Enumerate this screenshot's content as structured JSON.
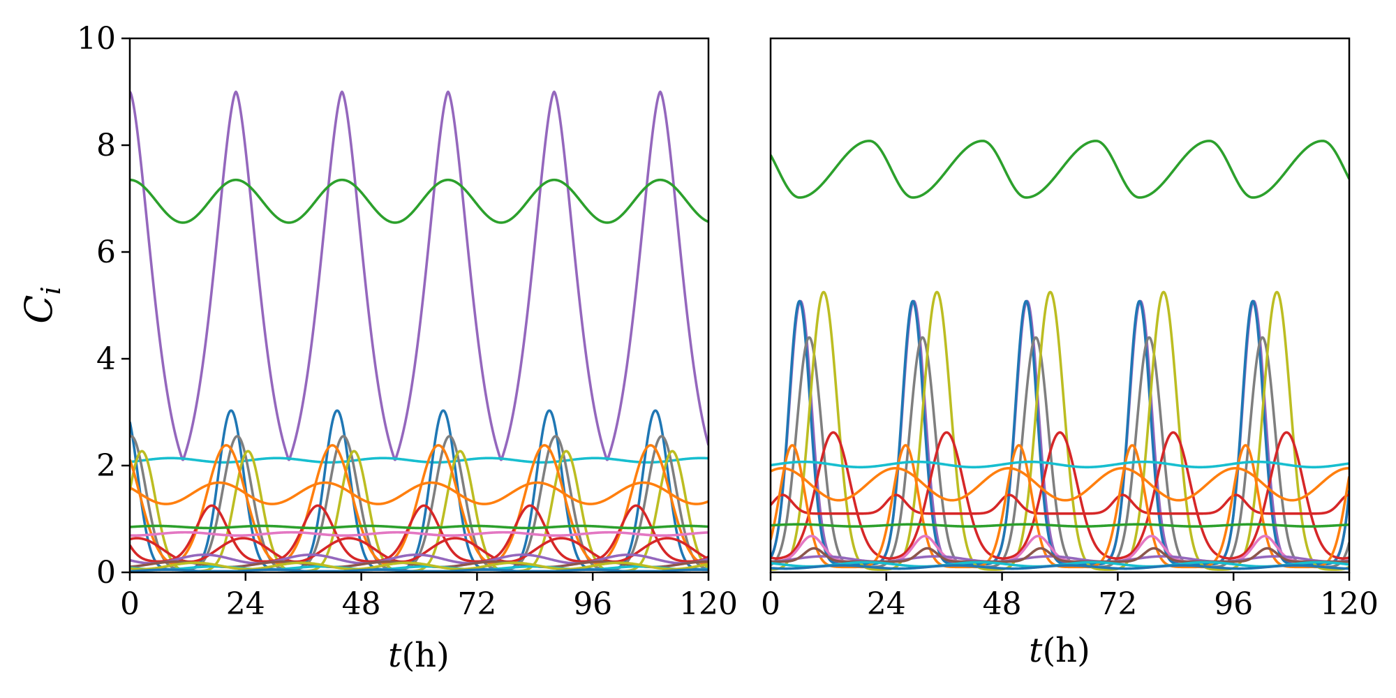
{
  "chart_data": [
    {
      "type": "line",
      "panel": "left",
      "title": "",
      "xlabel_var": "t",
      "xlabel_unit": "(h)",
      "ylabel": "C",
      "ylabel_sub": "i",
      "xlim": [
        0,
        120
      ],
      "ylim": [
        0,
        10
      ],
      "xticks": [
        0,
        24,
        48,
        72,
        96,
        120
      ],
      "xtick_labels": [
        "0",
        "24",
        "48",
        "72",
        "96",
        "120"
      ],
      "yticks": [
        0,
        2,
        4,
        6,
        8,
        10
      ],
      "ytick_labels": [
        "0",
        "2",
        "4",
        "6",
        "8",
        "10"
      ],
      "period_h": 22.0,
      "series": [
        {
          "name": "purple",
          "color": "#9467bd",
          "shape": "peak",
          "base": 1.35,
          "amp": 7.65,
          "center": 0.0,
          "width": 4.2,
          "power": 1.6
        },
        {
          "name": "green",
          "color": "#2ca02c",
          "shape": "sin",
          "base": 6.95,
          "amp": 0.4,
          "phase": 16.5
        },
        {
          "name": "teal",
          "color": "#17becf",
          "shape": "sin",
          "base": 2.1,
          "amp": 0.04,
          "phase": 3.0
        },
        {
          "name": "blue",
          "color": "#1f77b4",
          "shape": "peak",
          "base": 0.05,
          "amp": 2.98,
          "center": 21.0,
          "width": 2.6,
          "power": 2
        },
        {
          "name": "gray",
          "color": "#7f7f7f",
          "shape": "peak",
          "base": 0.05,
          "amp": 2.5,
          "center": 22.3,
          "width": 3.0,
          "power": 2
        },
        {
          "name": "olive",
          "color": "#bcbd22",
          "shape": "peak",
          "base": 0.02,
          "amp": 2.25,
          "center": 2.5,
          "width": 2.8,
          "power": 2
        },
        {
          "name": "orange",
          "color": "#ff7f0e",
          "shape": "peak",
          "base": 0.1,
          "amp": 2.28,
          "center": 20.0,
          "width": 4.0,
          "power": 2
        },
        {
          "name": "orange-2",
          "color": "#ff7f0e",
          "shape": "sin",
          "base": 1.48,
          "amp": 0.2,
          "phase": 13.0
        },
        {
          "name": "red",
          "color": "#d62728",
          "shape": "peak",
          "base": 0.2,
          "amp": 1.05,
          "center": 17.0,
          "width": 3.2,
          "power": 2
        },
        {
          "name": "red-2",
          "color": "#d62728",
          "shape": "sin",
          "base": 0.42,
          "amp": 0.22,
          "phase": 18.0
        },
        {
          "name": "green-2",
          "color": "#2ca02c",
          "shape": "sin",
          "base": 0.85,
          "amp": 0.02,
          "phase": 0.0
        },
        {
          "name": "pink",
          "color": "#e377c2",
          "shape": "sin",
          "base": 0.72,
          "amp": 0.03,
          "phase": 6.0
        },
        {
          "name": "purple-2",
          "color": "#9467bd",
          "shape": "sin",
          "base": 0.25,
          "amp": 0.08,
          "phase": 10.0
        },
        {
          "name": "brown",
          "color": "#8c564b",
          "shape": "sin",
          "base": 0.15,
          "amp": 0.05,
          "phase": 4.0
        },
        {
          "name": "cyan-2",
          "color": "#17becf",
          "shape": "sin",
          "base": 0.08,
          "amp": 0.03,
          "phase": 12.0
        },
        {
          "name": "olive-2",
          "color": "#bcbd22",
          "shape": "sin",
          "base": 0.12,
          "amp": 0.06,
          "phase": 8.0
        },
        {
          "name": "blue-2",
          "color": "#1f77b4",
          "shape": "sin",
          "base": 0.03,
          "amp": 0.02,
          "phase": 2.0
        }
      ]
    },
    {
      "type": "line",
      "panel": "right",
      "title": "",
      "xlabel_var": "t",
      "xlabel_unit": "(h)",
      "xlim": [
        0,
        120
      ],
      "ylim": [
        0,
        10
      ],
      "xticks": [
        0,
        24,
        48,
        72,
        96,
        120
      ],
      "xtick_labels": [
        "0",
        "24",
        "48",
        "72",
        "96",
        "120"
      ],
      "period_h": 23.5,
      "series": [
        {
          "name": "green",
          "color": "#2ca02c",
          "shape": "saw",
          "base": 7.02,
          "amp": 1.06,
          "rise": 14.5,
          "start": 6.0
        },
        {
          "name": "purple",
          "color": "#9467bd",
          "shape": "peak",
          "base": 0.15,
          "amp": 4.93,
          "center": 6.2,
          "width": 2.3,
          "power": 2
        },
        {
          "name": "blue",
          "color": "#1f77b4",
          "shape": "peak",
          "base": 0.15,
          "amp": 4.93,
          "center": 6.0,
          "width": 2.2,
          "power": 2
        },
        {
          "name": "gray",
          "color": "#7f7f7f",
          "shape": "peak",
          "base": 0.1,
          "amp": 4.3,
          "center": 8.0,
          "width": 2.6,
          "power": 2
        },
        {
          "name": "olive",
          "color": "#bcbd22",
          "shape": "peak",
          "base": 0.05,
          "amp": 5.2,
          "center": 11.0,
          "width": 2.8,
          "power": 2
        },
        {
          "name": "red",
          "color": "#d62728",
          "shape": "peak",
          "base": 0.25,
          "amp": 2.37,
          "center": 13.0,
          "width": 3.5,
          "power": 2
        },
        {
          "name": "red-2",
          "color": "#d62728",
          "shape": "peak",
          "base": 1.1,
          "amp": 0.35,
          "center": 2.5,
          "width": 2.0,
          "power": 2
        },
        {
          "name": "orange",
          "color": "#ff7f0e",
          "shape": "peak",
          "base": 0.1,
          "amp": 2.28,
          "center": 4.5,
          "width": 2.6,
          "power": 2
        },
        {
          "name": "orange-2",
          "color": "#ff7f0e",
          "shape": "sin",
          "base": 1.65,
          "amp": 0.3,
          "phase": 20.0
        },
        {
          "name": "teal",
          "color": "#17becf",
          "shape": "sin",
          "base": 2.02,
          "amp": 0.05,
          "phase": 1.0
        },
        {
          "name": "green-2",
          "color": "#2ca02c",
          "shape": "sin",
          "base": 0.88,
          "amp": 0.02,
          "phase": 0.0
        },
        {
          "name": "pink",
          "color": "#e377c2",
          "shape": "peak",
          "base": 0.2,
          "amp": 0.48,
          "center": 8.5,
          "width": 2.4,
          "power": 2
        },
        {
          "name": "purple-2",
          "color": "#9467bd",
          "shape": "sin",
          "base": 0.25,
          "amp": 0.05,
          "phase": 5.0
        },
        {
          "name": "brown",
          "color": "#8c564b",
          "shape": "peak",
          "base": 0.2,
          "amp": 0.25,
          "center": 9.0,
          "width": 2.0,
          "power": 2
        },
        {
          "name": "cyan-2",
          "color": "#17becf",
          "shape": "sin",
          "base": 0.15,
          "amp": 0.04,
          "phase": 14.0
        },
        {
          "name": "blue-2",
          "color": "#1f77b4",
          "shape": "sin",
          "base": 0.1,
          "amp": 0.03,
          "phase": 9.0
        }
      ]
    }
  ]
}
